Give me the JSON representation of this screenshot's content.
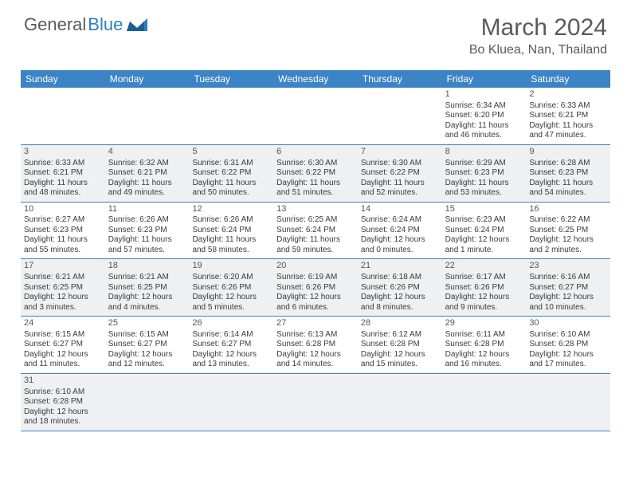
{
  "logo": {
    "text1": "General",
    "text2": "Blue"
  },
  "title": "March 2024",
  "location": "Bo Kluea, Nan, Thailand",
  "colors": {
    "header_bg": "#3d84c6",
    "header_text": "#ffffff",
    "alt_row_bg": "#eef0f1",
    "border": "#3d84c6",
    "text": "#3a3a3a",
    "title_text": "#5a5a5a"
  },
  "weekdays": [
    "Sunday",
    "Monday",
    "Tuesday",
    "Wednesday",
    "Thursday",
    "Friday",
    "Saturday"
  ],
  "weeks": [
    {
      "alt": false,
      "cells": [
        {
          "n": "",
          "sr": "",
          "ss": "",
          "d1": "",
          "d2": ""
        },
        {
          "n": "",
          "sr": "",
          "ss": "",
          "d1": "",
          "d2": ""
        },
        {
          "n": "",
          "sr": "",
          "ss": "",
          "d1": "",
          "d2": ""
        },
        {
          "n": "",
          "sr": "",
          "ss": "",
          "d1": "",
          "d2": ""
        },
        {
          "n": "",
          "sr": "",
          "ss": "",
          "d1": "",
          "d2": ""
        },
        {
          "n": "1",
          "sr": "Sunrise: 6:34 AM",
          "ss": "Sunset: 6:20 PM",
          "d1": "Daylight: 11 hours",
          "d2": "and 46 minutes."
        },
        {
          "n": "2",
          "sr": "Sunrise: 6:33 AM",
          "ss": "Sunset: 6:21 PM",
          "d1": "Daylight: 11 hours",
          "d2": "and 47 minutes."
        }
      ]
    },
    {
      "alt": true,
      "cells": [
        {
          "n": "3",
          "sr": "Sunrise: 6:33 AM",
          "ss": "Sunset: 6:21 PM",
          "d1": "Daylight: 11 hours",
          "d2": "and 48 minutes."
        },
        {
          "n": "4",
          "sr": "Sunrise: 6:32 AM",
          "ss": "Sunset: 6:21 PM",
          "d1": "Daylight: 11 hours",
          "d2": "and 49 minutes."
        },
        {
          "n": "5",
          "sr": "Sunrise: 6:31 AM",
          "ss": "Sunset: 6:22 PM",
          "d1": "Daylight: 11 hours",
          "d2": "and 50 minutes."
        },
        {
          "n": "6",
          "sr": "Sunrise: 6:30 AM",
          "ss": "Sunset: 6:22 PM",
          "d1": "Daylight: 11 hours",
          "d2": "and 51 minutes."
        },
        {
          "n": "7",
          "sr": "Sunrise: 6:30 AM",
          "ss": "Sunset: 6:22 PM",
          "d1": "Daylight: 11 hours",
          "d2": "and 52 minutes."
        },
        {
          "n": "8",
          "sr": "Sunrise: 6:29 AM",
          "ss": "Sunset: 6:23 PM",
          "d1": "Daylight: 11 hours",
          "d2": "and 53 minutes."
        },
        {
          "n": "9",
          "sr": "Sunrise: 6:28 AM",
          "ss": "Sunset: 6:23 PM",
          "d1": "Daylight: 11 hours",
          "d2": "and 54 minutes."
        }
      ]
    },
    {
      "alt": false,
      "cells": [
        {
          "n": "10",
          "sr": "Sunrise: 6:27 AM",
          "ss": "Sunset: 6:23 PM",
          "d1": "Daylight: 11 hours",
          "d2": "and 55 minutes."
        },
        {
          "n": "11",
          "sr": "Sunrise: 6:26 AM",
          "ss": "Sunset: 6:23 PM",
          "d1": "Daylight: 11 hours",
          "d2": "and 57 minutes."
        },
        {
          "n": "12",
          "sr": "Sunrise: 6:26 AM",
          "ss": "Sunset: 6:24 PM",
          "d1": "Daylight: 11 hours",
          "d2": "and 58 minutes."
        },
        {
          "n": "13",
          "sr": "Sunrise: 6:25 AM",
          "ss": "Sunset: 6:24 PM",
          "d1": "Daylight: 11 hours",
          "d2": "and 59 minutes."
        },
        {
          "n": "14",
          "sr": "Sunrise: 6:24 AM",
          "ss": "Sunset: 6:24 PM",
          "d1": "Daylight: 12 hours",
          "d2": "and 0 minutes."
        },
        {
          "n": "15",
          "sr": "Sunrise: 6:23 AM",
          "ss": "Sunset: 6:24 PM",
          "d1": "Daylight: 12 hours",
          "d2": "and 1 minute."
        },
        {
          "n": "16",
          "sr": "Sunrise: 6:22 AM",
          "ss": "Sunset: 6:25 PM",
          "d1": "Daylight: 12 hours",
          "d2": "and 2 minutes."
        }
      ]
    },
    {
      "alt": true,
      "cells": [
        {
          "n": "17",
          "sr": "Sunrise: 6:21 AM",
          "ss": "Sunset: 6:25 PM",
          "d1": "Daylight: 12 hours",
          "d2": "and 3 minutes."
        },
        {
          "n": "18",
          "sr": "Sunrise: 6:21 AM",
          "ss": "Sunset: 6:25 PM",
          "d1": "Daylight: 12 hours",
          "d2": "and 4 minutes."
        },
        {
          "n": "19",
          "sr": "Sunrise: 6:20 AM",
          "ss": "Sunset: 6:26 PM",
          "d1": "Daylight: 12 hours",
          "d2": "and 5 minutes."
        },
        {
          "n": "20",
          "sr": "Sunrise: 6:19 AM",
          "ss": "Sunset: 6:26 PM",
          "d1": "Daylight: 12 hours",
          "d2": "and 6 minutes."
        },
        {
          "n": "21",
          "sr": "Sunrise: 6:18 AM",
          "ss": "Sunset: 6:26 PM",
          "d1": "Daylight: 12 hours",
          "d2": "and 8 minutes."
        },
        {
          "n": "22",
          "sr": "Sunrise: 6:17 AM",
          "ss": "Sunset: 6:26 PM",
          "d1": "Daylight: 12 hours",
          "d2": "and 9 minutes."
        },
        {
          "n": "23",
          "sr": "Sunrise: 6:16 AM",
          "ss": "Sunset: 6:27 PM",
          "d1": "Daylight: 12 hours",
          "d2": "and 10 minutes."
        }
      ]
    },
    {
      "alt": false,
      "cells": [
        {
          "n": "24",
          "sr": "Sunrise: 6:15 AM",
          "ss": "Sunset: 6:27 PM",
          "d1": "Daylight: 12 hours",
          "d2": "and 11 minutes."
        },
        {
          "n": "25",
          "sr": "Sunrise: 6:15 AM",
          "ss": "Sunset: 6:27 PM",
          "d1": "Daylight: 12 hours",
          "d2": "and 12 minutes."
        },
        {
          "n": "26",
          "sr": "Sunrise: 6:14 AM",
          "ss": "Sunset: 6:27 PM",
          "d1": "Daylight: 12 hours",
          "d2": "and 13 minutes."
        },
        {
          "n": "27",
          "sr": "Sunrise: 6:13 AM",
          "ss": "Sunset: 6:28 PM",
          "d1": "Daylight: 12 hours",
          "d2": "and 14 minutes."
        },
        {
          "n": "28",
          "sr": "Sunrise: 6:12 AM",
          "ss": "Sunset: 6:28 PM",
          "d1": "Daylight: 12 hours",
          "d2": "and 15 minutes."
        },
        {
          "n": "29",
          "sr": "Sunrise: 6:11 AM",
          "ss": "Sunset: 6:28 PM",
          "d1": "Daylight: 12 hours",
          "d2": "and 16 minutes."
        },
        {
          "n": "30",
          "sr": "Sunrise: 6:10 AM",
          "ss": "Sunset: 6:28 PM",
          "d1": "Daylight: 12 hours",
          "d2": "and 17 minutes."
        }
      ]
    },
    {
      "alt": true,
      "cells": [
        {
          "n": "31",
          "sr": "Sunrise: 6:10 AM",
          "ss": "Sunset: 6:28 PM",
          "d1": "Daylight: 12 hours",
          "d2": "and 18 minutes."
        },
        {
          "n": "",
          "sr": "",
          "ss": "",
          "d1": "",
          "d2": ""
        },
        {
          "n": "",
          "sr": "",
          "ss": "",
          "d1": "",
          "d2": ""
        },
        {
          "n": "",
          "sr": "",
          "ss": "",
          "d1": "",
          "d2": ""
        },
        {
          "n": "",
          "sr": "",
          "ss": "",
          "d1": "",
          "d2": ""
        },
        {
          "n": "",
          "sr": "",
          "ss": "",
          "d1": "",
          "d2": ""
        },
        {
          "n": "",
          "sr": "",
          "ss": "",
          "d1": "",
          "d2": ""
        }
      ]
    }
  ]
}
